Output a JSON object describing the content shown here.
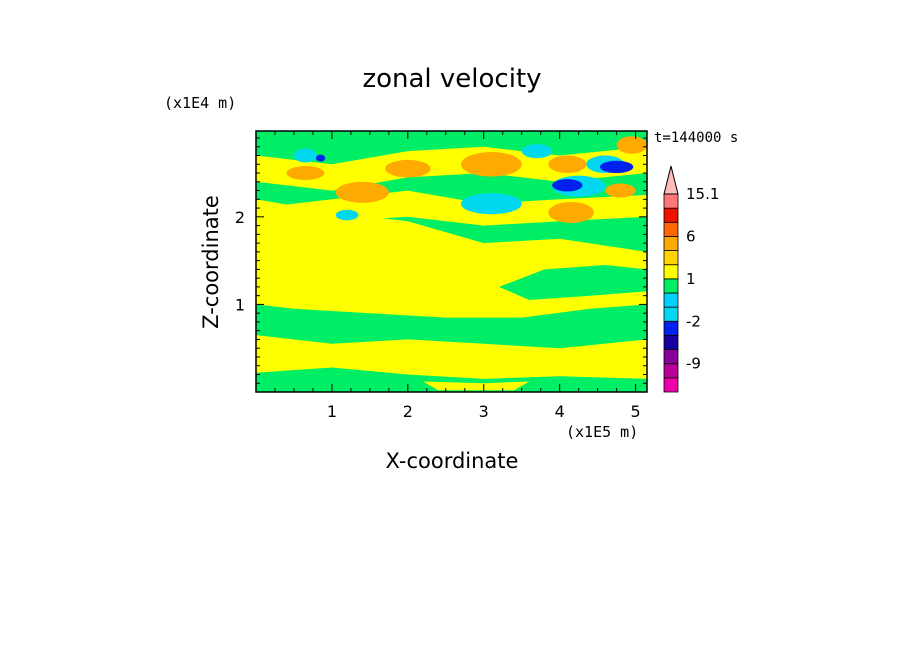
{
  "chart_data": {
    "type": "heatmap",
    "title": "zonal velocity",
    "xlabel": "X-coordinate",
    "ylabel": "Z-coordinate",
    "x_unit": "(x1E5 m)",
    "y_unit": "(x1E4 m)",
    "time_label": "t=144000 s",
    "xlim": [
      0,
      5.15
    ],
    "ylim": [
      0,
      2.98
    ],
    "x_ticks": [
      1,
      2,
      3,
      4,
      5
    ],
    "x_tick_labels": [
      "1",
      "2",
      "3",
      "4",
      "5"
    ],
    "y_ticks": [
      1,
      2
    ],
    "y_tick_labels": [
      "1",
      "2"
    ],
    "colorbar": {
      "labels": [
        "15.1",
        "6",
        "1",
        "-2",
        "-9"
      ],
      "levels": [
        -15,
        -12,
        -9,
        -6,
        -3,
        -2,
        -1,
        0,
        1,
        2,
        3,
        6,
        9,
        12,
        15.1
      ],
      "colors": [
        "#ee00aa",
        "#bb0099",
        "#880099",
        "#1800a0",
        "#0020ee",
        "#00d8f0",
        "#00d0ff",
        "#00ee66",
        "#ffff00",
        "#ffd400",
        "#ffaa00",
        "#ff6600",
        "#ee1100",
        "#ff7777",
        "#ffbbbb"
      ]
    },
    "regions": [
      {
        "name": "upper-green",
        "value": -0.5,
        "color": "#00ee66",
        "points": [
          [
            0,
            2.98
          ],
          [
            5.15,
            2.98
          ],
          [
            5.15,
            1.6
          ],
          [
            4,
            1.75
          ],
          [
            3,
            1.7
          ],
          [
            2,
            1.95
          ],
          [
            1,
            2.05
          ],
          [
            0,
            2.2
          ]
        ]
      },
      {
        "name": "upper-yellow-band-1",
        "value": 0.5,
        "color": "#ffff00",
        "points": [
          [
            0,
            2.7
          ],
          [
            1,
            2.6
          ],
          [
            2,
            2.75
          ],
          [
            3,
            2.8
          ],
          [
            4,
            2.7
          ],
          [
            5.15,
            2.8
          ],
          [
            5.15,
            2.5
          ],
          [
            4,
            2.4
          ],
          [
            3,
            2.5
          ],
          [
            2,
            2.45
          ],
          [
            1,
            2.3
          ],
          [
            0,
            2.4
          ]
        ]
      },
      {
        "name": "upper-yellow-band-2",
        "value": 0.5,
        "color": "#ffff00",
        "points": [
          [
            0,
            2.1
          ],
          [
            1,
            2.2
          ],
          [
            2,
            2.3
          ],
          [
            3,
            2.15
          ],
          [
            4,
            2.2
          ],
          [
            5.15,
            2.25
          ],
          [
            5.15,
            2.0
          ],
          [
            4,
            1.95
          ],
          [
            3,
            1.9
          ],
          [
            2,
            2.0
          ],
          [
            1,
            1.95
          ],
          [
            0,
            1.9
          ]
        ]
      },
      {
        "name": "middle-yellow",
        "value": 0.5,
        "color": "#ffff00",
        "points": [
          [
            0,
            1.85
          ],
          [
            1,
            1.8
          ],
          [
            2,
            1.7
          ],
          [
            3,
            1.6
          ],
          [
            4,
            1.5
          ],
          [
            5.15,
            1.55
          ],
          [
            5.15,
            1.1
          ],
          [
            4.4,
            1.05
          ],
          [
            3.5,
            1.0
          ],
          [
            2.5,
            0.95
          ],
          [
            1.5,
            1.05
          ],
          [
            0.5,
            1.1
          ],
          [
            0,
            1.0
          ]
        ]
      },
      {
        "name": "middle-green",
        "value": -0.5,
        "color": "#00ee66",
        "points": [
          [
            0,
            1.0
          ],
          [
            0.5,
            0.95
          ],
          [
            1.5,
            0.9
          ],
          [
            2.5,
            0.85
          ],
          [
            3.5,
            0.85
          ],
          [
            4.4,
            0.95
          ],
          [
            5.15,
            1.0
          ],
          [
            5.15,
            0.6
          ],
          [
            4,
            0.5
          ],
          [
            3,
            0.55
          ],
          [
            2,
            0.6
          ],
          [
            1,
            0.55
          ],
          [
            0,
            0.65
          ]
        ]
      },
      {
        "name": "lower-yellow",
        "value": 0.5,
        "color": "#ffff00",
        "points": [
          [
            0,
            0.6
          ],
          [
            1,
            0.5
          ],
          [
            2,
            0.55
          ],
          [
            3,
            0.5
          ],
          [
            4,
            0.45
          ],
          [
            5.15,
            0.5
          ],
          [
            5.15,
            0.2
          ],
          [
            4,
            0.25
          ],
          [
            3,
            0.2
          ],
          [
            2,
            0.25
          ],
          [
            1,
            0.3
          ],
          [
            0,
            0.25
          ]
        ]
      },
      {
        "name": "bottom-green",
        "value": -0.5,
        "color": "#00ee66",
        "points": [
          [
            0,
            0.22
          ],
          [
            1,
            0.28
          ],
          [
            2,
            0.2
          ],
          [
            3,
            0.15
          ],
          [
            4,
            0.18
          ],
          [
            5.15,
            0.15
          ],
          [
            5.15,
            0
          ],
          [
            0,
            0
          ]
        ]
      },
      {
        "name": "bottom-yellow-patch",
        "value": 0.5,
        "color": "#ffff00",
        "points": [
          [
            2.2,
            0.12
          ],
          [
            3.0,
            0.1
          ],
          [
            3.6,
            0.12
          ],
          [
            3.4,
            0.02
          ],
          [
            2.4,
            0.02
          ]
        ]
      },
      {
        "name": "right-green-lobe",
        "value": -0.5,
        "color": "#00ee66",
        "points": [
          [
            3.2,
            1.2
          ],
          [
            3.8,
            1.4
          ],
          [
            4.6,
            1.45
          ],
          [
            5.15,
            1.4
          ],
          [
            5.15,
            1.15
          ],
          [
            4.4,
            1.1
          ],
          [
            3.6,
            1.05
          ]
        ]
      }
    ],
    "blobs": [
      {
        "name": "orange-cell-a",
        "value": 2.5,
        "color": "#ffaa00",
        "cx": 1.4,
        "cy": 2.28,
        "rx": 0.35,
        "ry": 0.12
      },
      {
        "name": "orange-cell-b",
        "value": 2.5,
        "color": "#ffaa00",
        "cx": 2.0,
        "cy": 2.55,
        "rx": 0.3,
        "ry": 0.1
      },
      {
        "name": "orange-cell-c",
        "value": 2.5,
        "color": "#ffaa00",
        "cx": 3.1,
        "cy": 2.6,
        "rx": 0.4,
        "ry": 0.14
      },
      {
        "name": "orange-cell-d",
        "value": 2.5,
        "color": "#ffaa00",
        "cx": 4.1,
        "cy": 2.6,
        "rx": 0.25,
        "ry": 0.1
      },
      {
        "name": "orange-cell-e",
        "value": 2.5,
        "color": "#ffaa00",
        "cx": 4.15,
        "cy": 2.05,
        "rx": 0.3,
        "ry": 0.12
      },
      {
        "name": "orange-cell-f",
        "value": 2.5,
        "color": "#ffaa00",
        "cx": 4.8,
        "cy": 2.3,
        "rx": 0.2,
        "ry": 0.08
      },
      {
        "name": "orange-cell-g",
        "value": 2.5,
        "color": "#ffaa00",
        "cx": 0.65,
        "cy": 2.5,
        "rx": 0.25,
        "ry": 0.08
      },
      {
        "name": "orange-cell-h",
        "value": 2.5,
        "color": "#ffaa00",
        "cx": 4.95,
        "cy": 2.82,
        "rx": 0.2,
        "ry": 0.1
      },
      {
        "name": "cyan-cell-a",
        "value": -1.5,
        "color": "#00d8f0",
        "cx": 0.65,
        "cy": 2.7,
        "rx": 0.15,
        "ry": 0.08
      },
      {
        "name": "cyan-cell-b",
        "value": -1.5,
        "color": "#00d8f0",
        "cx": 1.2,
        "cy": 2.02,
        "rx": 0.15,
        "ry": 0.06
      },
      {
        "name": "cyan-cell-c",
        "value": -1.5,
        "color": "#00d8f0",
        "cx": 3.1,
        "cy": 2.15,
        "rx": 0.4,
        "ry": 0.12
      },
      {
        "name": "cyan-cell-d",
        "value": -1.5,
        "color": "#00d8f0",
        "cx": 4.25,
        "cy": 2.35,
        "rx": 0.35,
        "ry": 0.12
      },
      {
        "name": "cyan-cell-e",
        "value": -1.5,
        "color": "#00d8f0",
        "cx": 4.6,
        "cy": 2.6,
        "rx": 0.25,
        "ry": 0.1
      },
      {
        "name": "cyan-cell-f",
        "value": -1.5,
        "color": "#00d8f0",
        "cx": 3.7,
        "cy": 2.75,
        "rx": 0.2,
        "ry": 0.08
      },
      {
        "name": "blue-cell-a",
        "value": -3.5,
        "color": "#0020ee",
        "cx": 4.1,
        "cy": 2.36,
        "rx": 0.2,
        "ry": 0.07
      },
      {
        "name": "blue-cell-b",
        "value": -3.5,
        "color": "#0020ee",
        "cx": 4.75,
        "cy": 2.57,
        "rx": 0.22,
        "ry": 0.07
      },
      {
        "name": "blue-cell-c",
        "value": -3.5,
        "color": "#0020ee",
        "cx": 0.85,
        "cy": 2.67,
        "rx": 0.06,
        "ry": 0.04
      }
    ]
  }
}
